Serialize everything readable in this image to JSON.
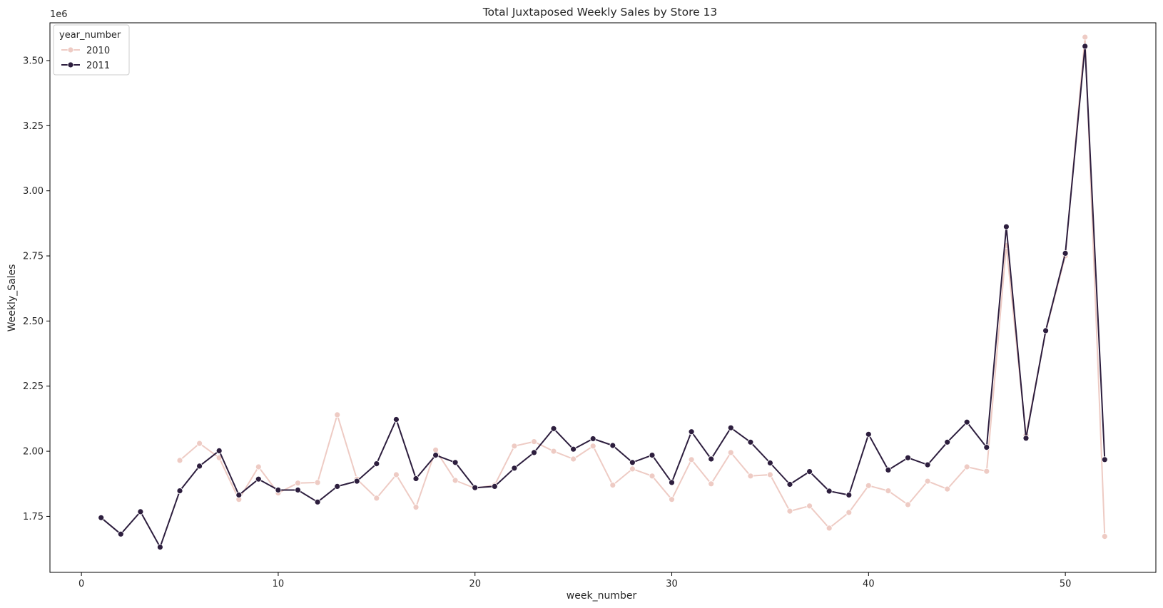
{
  "chart_data": {
    "type": "line",
    "title": "Total Juxtaposed Weekly Sales by Store 13",
    "xlabel": "week_number",
    "ylabel": "Weekly_Sales",
    "y_offset_label": "1e6",
    "xlim": [
      -1.6,
      54.6
    ],
    "ylim": [
      1.535,
      3.645
    ],
    "x_ticks": [
      0,
      10,
      20,
      30,
      40,
      50
    ],
    "y_ticks": [
      1.75,
      2.0,
      2.25,
      2.5,
      2.75,
      3.0,
      3.25,
      3.5
    ],
    "x_tick_labels": [
      "0",
      "10",
      "20",
      "30",
      "40",
      "50"
    ],
    "y_tick_labels": [
      "1.75",
      "2.00",
      "2.25",
      "2.50",
      "2.75",
      "3.00",
      "3.25",
      "3.50"
    ],
    "grid": false,
    "legend": {
      "title": "year_number",
      "placement": "top-left"
    },
    "series": [
      {
        "name": "2010",
        "color": "#eecbc4",
        "x": [
          5,
          6,
          7,
          8,
          9,
          10,
          11,
          12,
          13,
          14,
          15,
          16,
          17,
          18,
          19,
          20,
          21,
          22,
          23,
          24,
          25,
          26,
          27,
          28,
          29,
          30,
          31,
          32,
          33,
          34,
          35,
          36,
          37,
          38,
          39,
          40,
          41,
          42,
          43,
          44,
          45,
          46,
          47,
          48,
          49,
          50,
          51,
          52
        ],
        "values": [
          1.965,
          2.03,
          1.975,
          1.815,
          1.94,
          1.84,
          1.878,
          1.88,
          2.14,
          1.893,
          1.82,
          1.91,
          1.785,
          2.005,
          1.888,
          1.858,
          1.87,
          2.02,
          2.037,
          2.0,
          1.97,
          2.02,
          1.87,
          1.932,
          1.905,
          1.815,
          1.968,
          1.875,
          1.995,
          1.905,
          1.91,
          1.77,
          1.79,
          1.705,
          1.765,
          1.868,
          1.848,
          1.795,
          1.885,
          1.855,
          1.94,
          1.923,
          2.79,
          2.06,
          2.46,
          2.75,
          3.59,
          1.673
        ]
      },
      {
        "name": "2011",
        "color": "#2d1e3e",
        "x": [
          1,
          2,
          3,
          4,
          5,
          6,
          7,
          8,
          9,
          10,
          11,
          12,
          13,
          14,
          15,
          16,
          17,
          18,
          19,
          20,
          21,
          22,
          23,
          24,
          25,
          26,
          27,
          28,
          29,
          30,
          31,
          32,
          33,
          34,
          35,
          36,
          37,
          38,
          39,
          40,
          41,
          42,
          43,
          44,
          45,
          46,
          47,
          48,
          49,
          50,
          51,
          52
        ],
        "values": [
          1.745,
          1.682,
          1.768,
          1.632,
          1.848,
          1.943,
          2.002,
          1.832,
          1.893,
          1.851,
          1.851,
          1.805,
          1.865,
          1.885,
          1.952,
          2.122,
          1.895,
          1.985,
          1.957,
          1.86,
          1.865,
          1.935,
          1.995,
          2.087,
          2.008,
          2.048,
          2.022,
          1.957,
          1.985,
          1.88,
          2.075,
          1.97,
          2.09,
          2.035,
          1.955,
          1.873,
          1.922,
          1.847,
          1.832,
          2.065,
          1.928,
          1.975,
          1.948,
          2.035,
          2.112,
          2.015,
          2.862,
          2.05,
          2.463,
          2.76,
          3.555,
          1.968
        ]
      }
    ]
  }
}
